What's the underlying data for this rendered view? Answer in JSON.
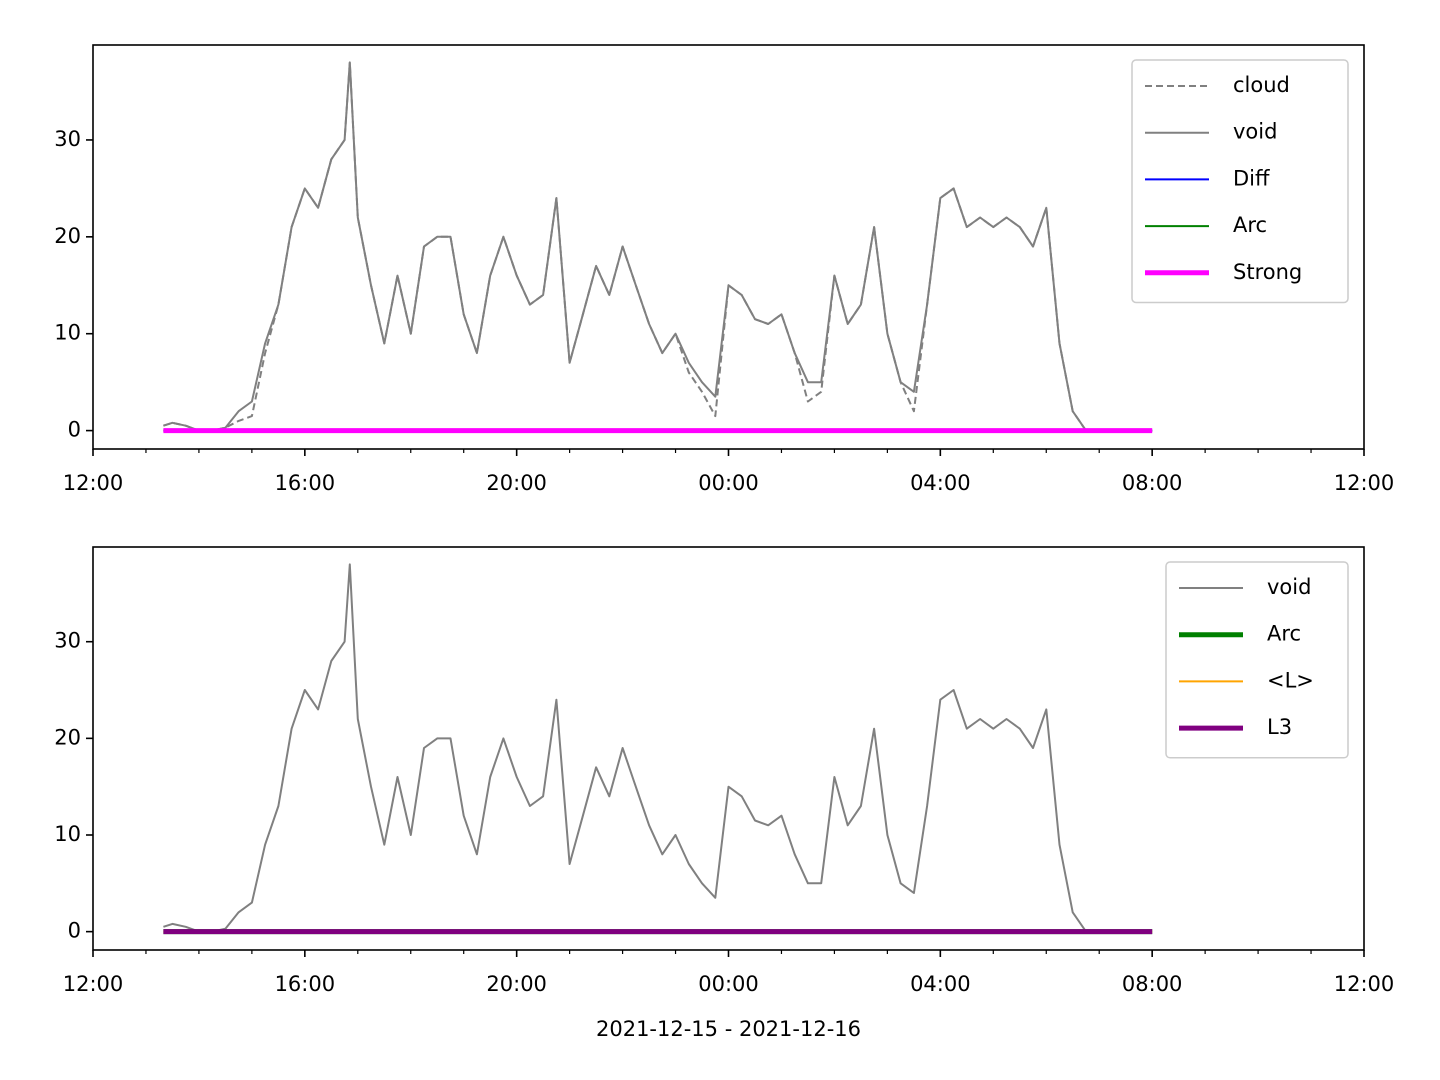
{
  "chart_data": [
    {
      "type": "line",
      "x": [
        13.33,
        13.5,
        13.75,
        14,
        14.25,
        14.5,
        14.75,
        15,
        15.25,
        15.5,
        15.75,
        16,
        16.25,
        16.5,
        16.75,
        16.85,
        17,
        17.25,
        17.5,
        17.75,
        18,
        18.25,
        18.5,
        18.75,
        19,
        19.25,
        19.5,
        19.75,
        20,
        20.25,
        20.5,
        20.75,
        21,
        21.25,
        21.5,
        21.75,
        22,
        22.25,
        22.5,
        22.75,
        23,
        23.25,
        23.5,
        23.75,
        24,
        24.25,
        24.5,
        24.75,
        25,
        25.25,
        25.5,
        25.75,
        26,
        26.25,
        26.5,
        26.75,
        27,
        27.25,
        27.5,
        27.75,
        28,
        28.25,
        28.5,
        28.75,
        29,
        29.25,
        29.5,
        29.75,
        30,
        30.25,
        30.5,
        30.75,
        31,
        31.25,
        31.5,
        31.75,
        32
      ],
      "series": [
        {
          "name": "cloud",
          "color": "#808080",
          "linestyle": "dashed",
          "linewidth": 2,
          "values": [
            0.5,
            0.8,
            0.5,
            0,
            0,
            0.3,
            1,
            1.5,
            8,
            13,
            21,
            25,
            23,
            28,
            30,
            38,
            22,
            15,
            9,
            16,
            10,
            19,
            20,
            20,
            12,
            8,
            16,
            20,
            16,
            13,
            14,
            24,
            7,
            12,
            17,
            14,
            19,
            15,
            11,
            8,
            10,
            6,
            4,
            1.5,
            15,
            14,
            11.5,
            11,
            12,
            8,
            3,
            4,
            16,
            11,
            13,
            21,
            10,
            5,
            2,
            13,
            24,
            25,
            21,
            22,
            21,
            22,
            21,
            19,
            23,
            9,
            2,
            0,
            null,
            null,
            null,
            null,
            null
          ]
        },
        {
          "name": "void",
          "color": "#808080",
          "linestyle": "solid",
          "linewidth": 2,
          "values": [
            0.5,
            0.8,
            0.5,
            0,
            0,
            0.3,
            2,
            3,
            9,
            13,
            21,
            25,
            23,
            28,
            30,
            38,
            22,
            15,
            9,
            16,
            10,
            19,
            20,
            20,
            12,
            8,
            16,
            20,
            16,
            13,
            14,
            24,
            7,
            12,
            17,
            14,
            19,
            15,
            11,
            8,
            10,
            7,
            5,
            3.5,
            15,
            14,
            11.5,
            11,
            12,
            8,
            5,
            5,
            16,
            11,
            13,
            21,
            10,
            5,
            4,
            13,
            24,
            25,
            21,
            22,
            21,
            22,
            21,
            19,
            23,
            9,
            2,
            0,
            null,
            null,
            null,
            null,
            null
          ]
        },
        {
          "name": "Diff",
          "color": "#0000ff",
          "linestyle": "solid",
          "linewidth": 2,
          "values": [
            0,
            0,
            0,
            0,
            0,
            0,
            0,
            0,
            0,
            0,
            0,
            0,
            0,
            0,
            0,
            0,
            0,
            0,
            0,
            0,
            0,
            0,
            0,
            0,
            0,
            0,
            0,
            0,
            0,
            0,
            0,
            0,
            0,
            0,
            0,
            0,
            0,
            0,
            0,
            0,
            0,
            0,
            0,
            0,
            0,
            0,
            0,
            0,
            0,
            0,
            0,
            0,
            0,
            0,
            0,
            0,
            0,
            0,
            0,
            0,
            0,
            0,
            0,
            0,
            0,
            0,
            0,
            0,
            0,
            0,
            0,
            0,
            0,
            0,
            0,
            0,
            0
          ]
        },
        {
          "name": "Arc",
          "color": "#008000",
          "linestyle": "solid",
          "linewidth": 2,
          "values": [
            0,
            0,
            0,
            0,
            0,
            0,
            0,
            0,
            0,
            0,
            0,
            0,
            0,
            0,
            0,
            0,
            0,
            0,
            0,
            0,
            0,
            0,
            0,
            0,
            0,
            0,
            0,
            0,
            0,
            0,
            0,
            0,
            0,
            0,
            0,
            0,
            0,
            0,
            0,
            0,
            0,
            0,
            0,
            0,
            0,
            0,
            0,
            0,
            0,
            0,
            0,
            0,
            0,
            0,
            0,
            0,
            0,
            0,
            0,
            0,
            0,
            0,
            0,
            0,
            0,
            0,
            0,
            0,
            0,
            0,
            0,
            0,
            0,
            0,
            0,
            0,
            0
          ]
        },
        {
          "name": "Strong",
          "color": "#ff00ff",
          "linestyle": "solid",
          "linewidth": 5,
          "values": [
            0,
            0,
            0,
            0,
            0,
            0,
            0,
            0,
            0,
            0,
            0,
            0,
            0,
            0,
            0,
            0,
            0,
            0,
            0,
            0,
            0,
            0,
            0,
            0,
            0,
            0,
            0,
            0,
            0,
            0,
            0,
            0,
            0,
            0,
            0,
            0,
            0,
            0,
            0,
            0,
            0,
            0,
            0,
            0,
            0,
            0,
            0,
            0,
            0,
            0,
            0,
            0,
            0,
            0,
            0,
            0,
            0,
            0,
            0,
            0,
            0,
            0,
            0,
            0,
            0,
            0,
            0,
            0,
            0,
            0,
            0,
            0,
            0,
            0,
            0,
            0,
            0
          ]
        }
      ],
      "xlim": [
        12,
        36
      ],
      "xticks": [
        {
          "value": 12,
          "label": "12:00"
        },
        {
          "value": 16,
          "label": "16:00"
        },
        {
          "value": 20,
          "label": "20:00"
        },
        {
          "value": 24,
          "label": "00:00"
        },
        {
          "value": 28,
          "label": "04:00"
        },
        {
          "value": 32,
          "label": "08:00"
        },
        {
          "value": 36,
          "label": "12:00"
        }
      ],
      "xminorticks": [
        13,
        14,
        15,
        17,
        18,
        19,
        21,
        22,
        23,
        25,
        26,
        27,
        29,
        30,
        31,
        33,
        34,
        35
      ],
      "ylim": [
        -1.9,
        39.8
      ],
      "yticks": [
        0,
        10,
        20,
        30
      ],
      "legend": "upper right"
    },
    {
      "type": "line",
      "x": [
        13.33,
        13.5,
        13.75,
        14,
        14.25,
        14.5,
        14.75,
        15,
        15.25,
        15.5,
        15.75,
        16,
        16.25,
        16.5,
        16.75,
        16.85,
        17,
        17.25,
        17.5,
        17.75,
        18,
        18.25,
        18.5,
        18.75,
        19,
        19.25,
        19.5,
        19.75,
        20,
        20.25,
        20.5,
        20.75,
        21,
        21.25,
        21.5,
        21.75,
        22,
        22.25,
        22.5,
        22.75,
        23,
        23.25,
        23.5,
        23.75,
        24,
        24.25,
        24.5,
        24.75,
        25,
        25.25,
        25.5,
        25.75,
        26,
        26.25,
        26.5,
        26.75,
        27,
        27.25,
        27.5,
        27.75,
        28,
        28.25,
        28.5,
        28.75,
        29,
        29.25,
        29.5,
        29.75,
        30,
        30.25,
        30.5,
        30.75,
        31,
        31.25,
        31.5,
        31.75,
        32
      ],
      "series": [
        {
          "name": "void",
          "color": "#808080",
          "linestyle": "solid",
          "linewidth": 2,
          "values": [
            0.5,
            0.8,
            0.5,
            0,
            0,
            0.3,
            2,
            3,
            9,
            13,
            21,
            25,
            23,
            28,
            30,
            38,
            22,
            15,
            9,
            16,
            10,
            19,
            20,
            20,
            12,
            8,
            16,
            20,
            16,
            13,
            14,
            24,
            7,
            12,
            17,
            14,
            19,
            15,
            11,
            8,
            10,
            7,
            5,
            3.5,
            15,
            14,
            11.5,
            11,
            12,
            8,
            5,
            5,
            16,
            11,
            13,
            21,
            10,
            5,
            4,
            13,
            24,
            25,
            21,
            22,
            21,
            22,
            21,
            19,
            23,
            9,
            2,
            0,
            null,
            null,
            null,
            null,
            null
          ]
        },
        {
          "name": "Arc",
          "color": "#008000",
          "linestyle": "solid",
          "linewidth": 5,
          "values": [
            0,
            0,
            0,
            0,
            0,
            0,
            0,
            0,
            0,
            0,
            0,
            0,
            0,
            0,
            0,
            0,
            0,
            0,
            0,
            0,
            0,
            0,
            0,
            0,
            0,
            0,
            0,
            0,
            0,
            0,
            0,
            0,
            0,
            0,
            0,
            0,
            0,
            0,
            0,
            0,
            0,
            0,
            0,
            0,
            0,
            0,
            0,
            0,
            0,
            0,
            0,
            0,
            0,
            0,
            0,
            0,
            0,
            0,
            0,
            0,
            0,
            0,
            0,
            0,
            0,
            0,
            0,
            0,
            0,
            0,
            0,
            0,
            0,
            0,
            0,
            0,
            0
          ]
        },
        {
          "name": "<L>",
          "color": "#ffa500",
          "linestyle": "solid",
          "linewidth": 2,
          "values": [
            0,
            0,
            0,
            0,
            0,
            0,
            0,
            0,
            0,
            0,
            0,
            0,
            0,
            0,
            0,
            0,
            0,
            0,
            0,
            0,
            0,
            0,
            0,
            0,
            0,
            0,
            0,
            0,
            0,
            0,
            0,
            0,
            0,
            0,
            0,
            0,
            0,
            0,
            0,
            0,
            0,
            0,
            0,
            0,
            0,
            0,
            0,
            0,
            0,
            0,
            0,
            0,
            0,
            0,
            0,
            0,
            0,
            0,
            0,
            0,
            0,
            0,
            0,
            0,
            0,
            0,
            0,
            0,
            0,
            0,
            0,
            0,
            0,
            0,
            0,
            0,
            0
          ]
        },
        {
          "name": "L3",
          "color": "#800080",
          "linestyle": "solid",
          "linewidth": 5,
          "values": [
            0,
            0,
            0,
            0,
            0,
            0,
            0,
            0,
            0,
            0,
            0,
            0,
            0,
            0,
            0,
            0,
            0,
            0,
            0,
            0,
            0,
            0,
            0,
            0,
            0,
            0,
            0,
            0,
            0,
            0,
            0,
            0,
            0,
            0,
            0,
            0,
            0,
            0,
            0,
            0,
            0,
            0,
            0,
            0,
            0,
            0,
            0,
            0,
            0,
            0,
            0,
            0,
            0,
            0,
            0,
            0,
            0,
            0,
            0,
            0,
            0,
            0,
            0,
            0,
            0,
            0,
            0,
            0,
            0,
            0,
            0,
            0,
            0,
            0,
            0,
            0,
            0
          ]
        }
      ],
      "xlim": [
        12,
        36
      ],
      "xticks": [
        {
          "value": 12,
          "label": "12:00"
        },
        {
          "value": 16,
          "label": "16:00"
        },
        {
          "value": 20,
          "label": "20:00"
        },
        {
          "value": 24,
          "label": "00:00"
        },
        {
          "value": 28,
          "label": "04:00"
        },
        {
          "value": 32,
          "label": "08:00"
        },
        {
          "value": 36,
          "label": "12:00"
        }
      ],
      "xminorticks": [
        13,
        14,
        15,
        17,
        18,
        19,
        21,
        22,
        23,
        25,
        26,
        27,
        29,
        30,
        31,
        33,
        34,
        35
      ],
      "ylim": [
        -1.9,
        39.8
      ],
      "yticks": [
        0,
        10,
        20,
        30
      ],
      "xlabel": "2021-12-15 - 2021-12-16",
      "legend": "upper right"
    }
  ]
}
